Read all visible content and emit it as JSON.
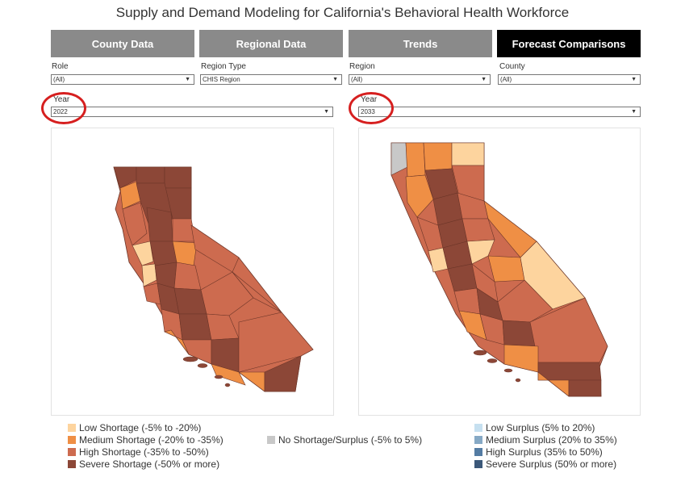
{
  "title": "Supply and Demand Modeling for California's Behavioral Health Workforce",
  "tabs": [
    {
      "label": "County Data"
    },
    {
      "label": "Regional Data"
    },
    {
      "label": "Trends"
    },
    {
      "label": "Forecast Comparisons"
    }
  ],
  "active_tab": "Forecast Comparisons",
  "filters": {
    "role": {
      "label": "Role",
      "value": "(All)"
    },
    "region_type": {
      "label": "Region Type",
      "value": "CHIS Region"
    },
    "region": {
      "label": "Region",
      "value": "(All)"
    },
    "county": {
      "label": "County",
      "value": "(All)"
    },
    "year_left": {
      "label": "Year",
      "value": "2022"
    },
    "year_right": {
      "label": "Year",
      "value": "2033"
    }
  },
  "colors": {
    "low_shortage": "#fdd49e",
    "medium_shortage": "#ef8f45",
    "high_shortage": "#cd6b4f",
    "severe_shortage": "#8c4737",
    "no_change": "#c8c8c8",
    "low_surplus": "#c6e0f0",
    "medium_surplus": "#86a9c5",
    "high_surplus": "#547ca3",
    "severe_surplus": "#3b5879",
    "annotation_ring": "#d61f1f"
  },
  "legend": {
    "left": [
      {
        "label": "Low Shortage (-5% to -20%)",
        "color": "#fdd49e"
      },
      {
        "label": "Medium Shortage (-20% to -35%)",
        "color": "#ef8f45"
      },
      {
        "label": "High Shortage (-35% to -50%)",
        "color": "#cd6b4f"
      },
      {
        "label": "Severe Shortage (-50% or more)",
        "color": "#8c4737"
      }
    ],
    "middle": [
      {
        "label": "No Shortage/Surplus (-5% to 5%)",
        "color": "#c8c8c8"
      }
    ],
    "right": [
      {
        "label": "Low Surplus (5% to 20%)",
        "color": "#c6e0f0"
      },
      {
        "label": "Medium Surplus (20% to 35%)",
        "color": "#86a9c5"
      },
      {
        "label": "High Surplus (35% to 50%)",
        "color": "#547ca3"
      },
      {
        "label": "Severe Surplus (50% or more)",
        "color": "#3b5879"
      }
    ]
  }
}
